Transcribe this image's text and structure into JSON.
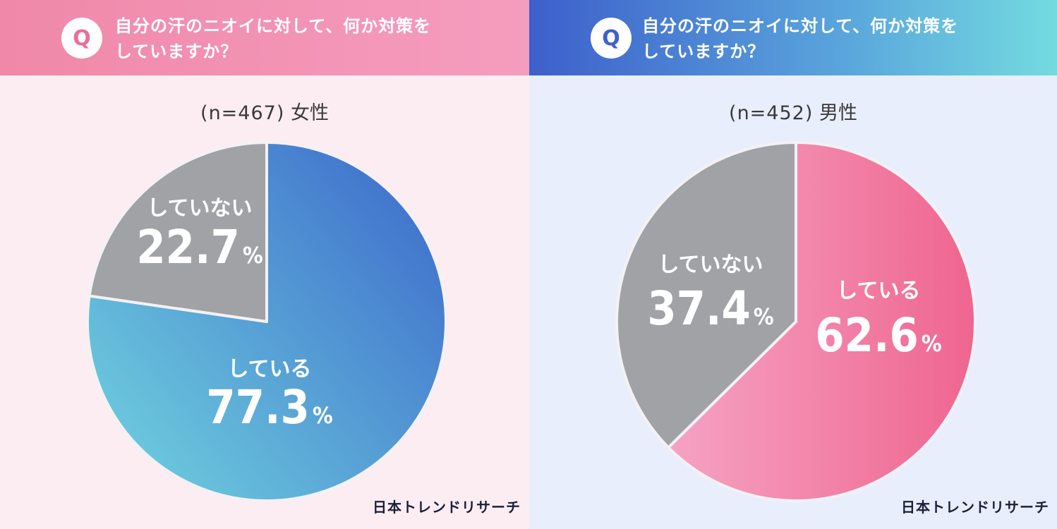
{
  "chart_data": [
    {
      "type": "pie",
      "question": "自分の汗のニオイに対して、何か対策を\nしていますか？",
      "q_badge": "Q",
      "sample_n": "(n=467)",
      "group": "女性",
      "slices": [
        {
          "label": "している",
          "value": 77.3,
          "display": "77.3",
          "unit": "%",
          "color_start": "#6ccbdd",
          "color_end": "#3f6fcc"
        },
        {
          "label": "していない",
          "value": 22.7,
          "display": "22.7",
          "unit": "%",
          "color": "#a1a2a6"
        }
      ],
      "logo": "日本トレンドリサーチ"
    },
    {
      "type": "pie",
      "question": "自分の汗のニオイに対して、何か対策を\nしていますか？",
      "q_badge": "Q",
      "sample_n": "(n=452)",
      "group": "男性",
      "slices": [
        {
          "label": "している",
          "value": 62.6,
          "display": "62.6",
          "unit": "%",
          "color_start": "#f6a3c3",
          "color_end": "#ef6590"
        },
        {
          "label": "していない",
          "value": 37.4,
          "display": "37.4",
          "unit": "%",
          "color": "#a1a2a6"
        }
      ],
      "logo": "日本トレンドリサーチ"
    }
  ]
}
